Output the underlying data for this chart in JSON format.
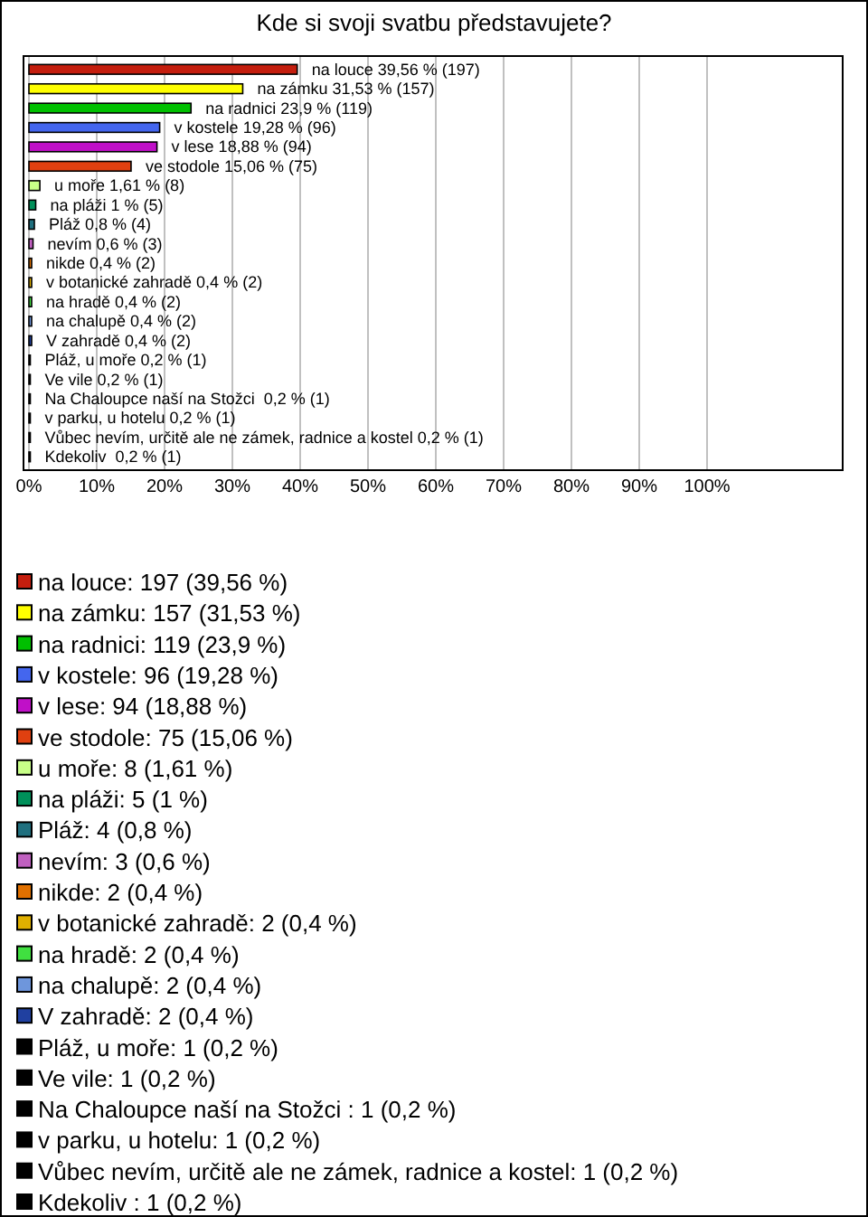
{
  "chart_data": {
    "type": "bar",
    "orientation": "horizontal",
    "title": "Kde si svoji svatbu představujete?",
    "categories": [
      null,
      null,
      null,
      null,
      null,
      null,
      null,
      null,
      null,
      null,
      null,
      null,
      null,
      null,
      null,
      null,
      null,
      null,
      null,
      null,
      null
    ],
    "values": [
      39.56,
      31.53,
      23.9,
      19.28,
      18.88,
      15.06,
      1.61,
      1,
      0.8,
      0.6,
      0.4,
      0.4,
      0.4,
      0.4,
      0.4,
      0.2,
      0.2,
      0.2,
      0.2,
      0.2,
      0.2
    ],
    "colors": [
      "#c41e0e",
      "#ffff00",
      "#00c000",
      "#4466ee",
      "#c010c8",
      "#e04010",
      "#c8ff88",
      "#00905a",
      "#20707f",
      "#c060c0",
      "#e07000",
      "#e0b000",
      "#40e040",
      "#6e96dc",
      "#2040a0",
      "#000000",
      "#000000",
      "#000000",
      "#000000",
      "#000000",
      "#000000"
    ],
    "value_labels": [
      "na louce 39,56 % (197)",
      "na zámku 31,53 % (157)",
      "na radnici 23,9 % (119)",
      "v kostele 19,28 % (96)",
      "v lese 18,88 % (94)",
      "ve stodole 15,06 % (75)",
      "u moře 1,61 % (8)",
      "na pláži 1 % (5)",
      "Pláž 0,8 % (4)",
      "nevím 0,6 % (3)",
      "nikde 0,4 % (2)",
      "v botanické zahradě 0,4 % (2)",
      "na hradě 0,4 % (2)",
      "na chalupě 0,4 % (2)",
      "V zahradě 0,4 % (2)",
      "Pláž, u moře 0,2 % (1)",
      "Ve vile 0,2 % (1)",
      "Na Chaloupce naší na Stožci  0,2 % (1)",
      "v parku, u hotelu 0,2 % (1)",
      "Vůbec nevím, určitě ale ne zámek, radnice a kostel 0,2 % (1)",
      "Kdekoliv  0,2 % (1)"
    ],
    "xlim": [
      0,
      120
    ],
    "xticks": [
      {
        "value": 0,
        "label": "0%"
      },
      {
        "value": 10,
        "label": "10%"
      },
      {
        "value": 20,
        "label": "20%"
      },
      {
        "value": 30,
        "label": "30%"
      },
      {
        "value": 40,
        "label": "40%"
      },
      {
        "value": 50,
        "label": "50%"
      },
      {
        "value": 60,
        "label": "60%"
      },
      {
        "value": 70,
        "label": "70%"
      },
      {
        "value": 80,
        "label": "80%"
      },
      {
        "value": 90,
        "label": "90%"
      },
      {
        "value": 100,
        "label": "100%"
      }
    ],
    "tick_labels": "x",
    "grid": "x",
    "annotations": [
      "na louce: 197 (39,56 %)",
      "na zámku: 157 (31,53 %)",
      "na radnici: 119 (23,9 %)",
      "v kostele: 96 (19,28 %)",
      "v lese: 94 (18,88 %)",
      "ve stodole: 75 (15,06 %)",
      "u moře: 8 (1,61 %)",
      "na pláži: 5 (1 %)",
      "Pláž: 4 (0,8 %)",
      "nevím: 3 (0,6 %)",
      "nikde: 2 (0,4 %)",
      "v botanické zahradě: 2 (0,4 %)",
      "na hradě: 2 (0,4 %)",
      "na chalupě: 2 (0,4 %)",
      "V zahradě: 2 (0,4 %)",
      "Pláž, u moře: 1 (0,2 %)",
      "Ve vile: 1 (0,2 %)",
      "Na Chaloupce naší na Stožci : 1 (0,2 %)",
      "v parku, u hotelu: 1 (0,2 %)",
      "Vůbec nevím, určitě ale ne zámek, radnice a kostel: 1 (0,2 %)",
      "Kdekoliv : 1 (0,2 %)"
    ]
  }
}
